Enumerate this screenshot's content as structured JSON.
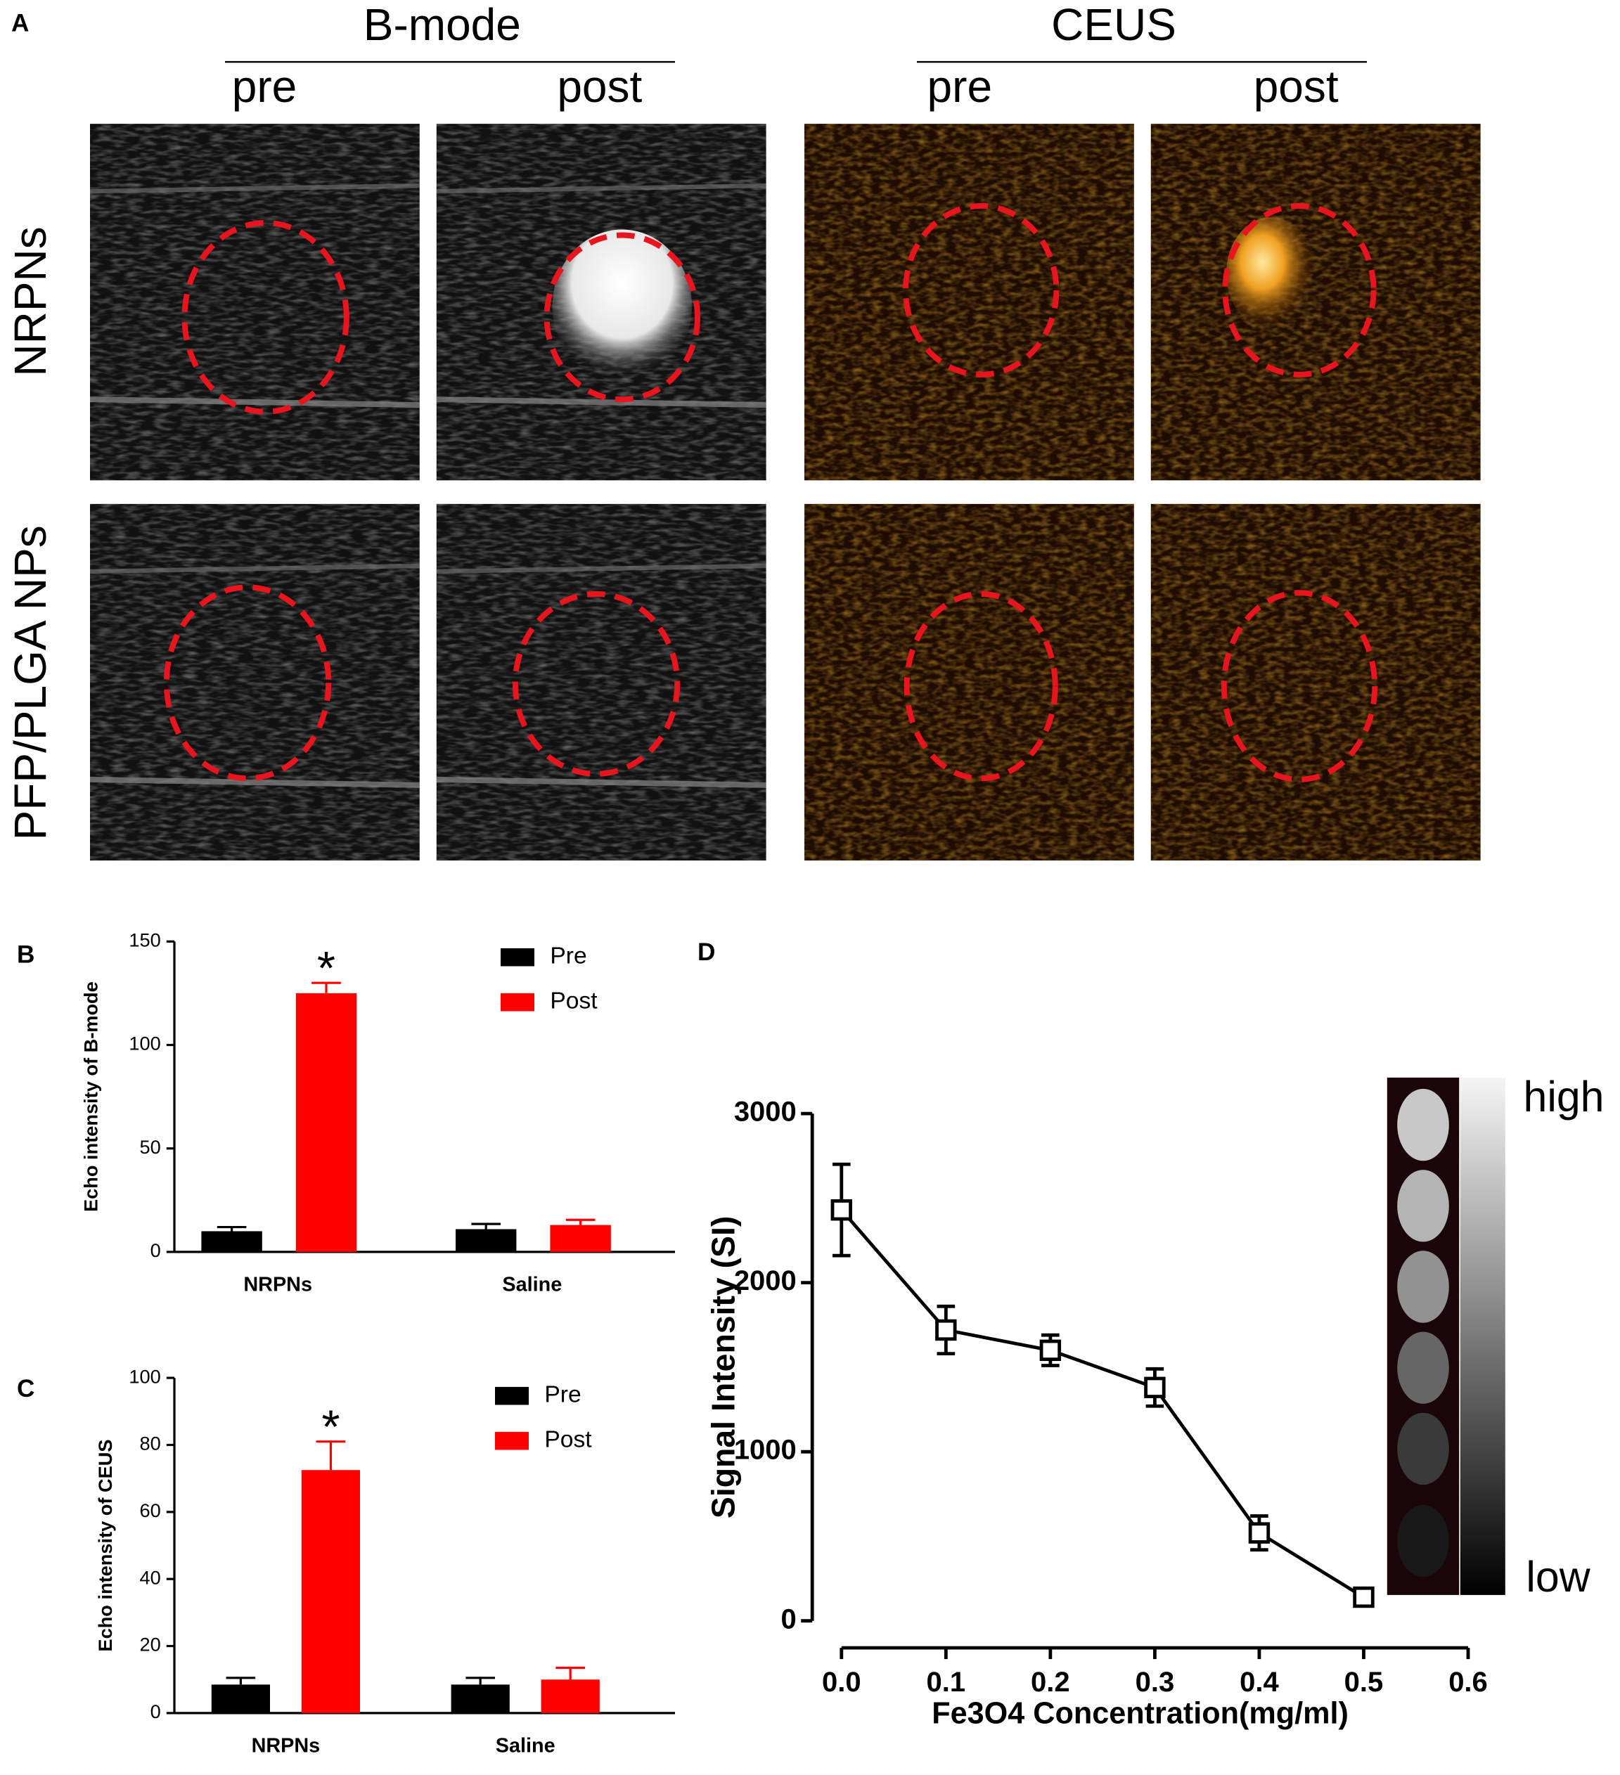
{
  "panel_a": {
    "label": "A",
    "groups": [
      {
        "title": "B-mode",
        "columns": [
          "pre",
          "post"
        ]
      },
      {
        "title": "CEUS",
        "columns": [
          "pre",
          "post"
        ]
      }
    ],
    "rows": [
      "NRPNs",
      "PFP/PLGA NPs"
    ]
  },
  "chart_data": [
    {
      "type": "bar",
      "panel_label": "B",
      "ylabel": "Echo intensity of B-mode",
      "annotation": "*",
      "categories": [
        "NRPNs",
        "Saline"
      ],
      "series": [
        {
          "name": "Pre",
          "color": "#000000",
          "values": [
            10,
            11
          ],
          "errors": [
            2,
            2.5
          ]
        },
        {
          "name": "Post",
          "color": "#ff0000",
          "values": [
            125,
            13
          ],
          "errors": [
            5,
            2.5
          ]
        }
      ],
      "ylim": [
        0,
        150
      ],
      "yticks": [
        0,
        50,
        100,
        150
      ]
    },
    {
      "type": "bar",
      "panel_label": "C",
      "ylabel": "Echo intensity of CEUS",
      "annotation": "*",
      "categories": [
        "NRPNs",
        "Saline"
      ],
      "series": [
        {
          "name": "Pre",
          "color": "#000000",
          "values": [
            8.5,
            8.5
          ],
          "errors": [
            2,
            2
          ]
        },
        {
          "name": "Post",
          "color": "#ff0000",
          "values": [
            72.5,
            10
          ],
          "errors": [
            8.5,
            3.5
          ]
        }
      ],
      "ylim": [
        0,
        100
      ],
      "yticks": [
        0,
        20,
        40,
        60,
        80,
        100
      ]
    },
    {
      "type": "line",
      "panel_label": "D",
      "xlabel": "Fe3O4 Concentration(mg/ml)",
      "ylabel": "Signal Intensity (SI)",
      "x": [
        0,
        0.1,
        0.2,
        0.3,
        0.4,
        0.5
      ],
      "values": [
        2430,
        1720,
        1600,
        1380,
        520,
        140
      ],
      "errors": [
        270,
        140,
        90,
        110,
        100,
        30
      ],
      "color": "#000000",
      "xlim": [
        0,
        0.6
      ],
      "xticks": [
        {
          "value": 0,
          "label": "0.0"
        },
        0.1,
        0.2,
        0.3,
        0.4,
        0.5,
        0.6
      ],
      "ylim": [
        0,
        3000
      ],
      "yticks": [
        0,
        1000,
        2000,
        3000
      ],
      "scale_labels": [
        "high",
        "low"
      ]
    }
  ]
}
